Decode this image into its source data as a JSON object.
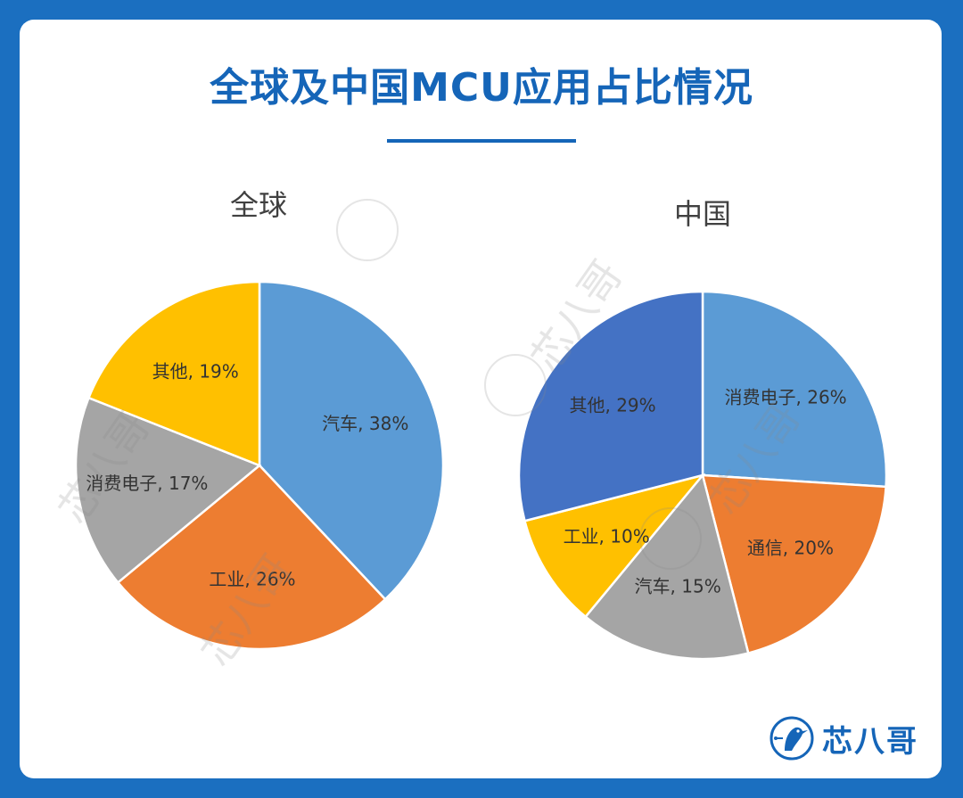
{
  "page": {
    "title": "全球及中国MCU应用占比情况",
    "watermark": "芯八哥",
    "logo_text": "芯八哥"
  },
  "colors": {
    "background": "#1b6fc0",
    "title": "#1565b8"
  },
  "chart_data": [
    {
      "type": "pie",
      "title": "全球",
      "start_angle_deg": 0,
      "direction": "clockwise",
      "slices": [
        {
          "label": "汽车",
          "value": 38,
          "color": "#5b9bd5"
        },
        {
          "label": "工业",
          "value": 26,
          "color": "#ed7d31"
        },
        {
          "label": "消费电子",
          "value": 17,
          "color": "#a5a5a5"
        },
        {
          "label": "其他",
          "value": 19,
          "color": "#ffc000"
        }
      ]
    },
    {
      "type": "pie",
      "title": "中国",
      "start_angle_deg": 0,
      "direction": "clockwise",
      "slices": [
        {
          "label": "消费电子",
          "value": 26,
          "color": "#5b9bd5"
        },
        {
          "label": "通信",
          "value": 20,
          "color": "#ed7d31"
        },
        {
          "label": "汽车",
          "value": 15,
          "color": "#a5a5a5"
        },
        {
          "label": "工业",
          "value": 10,
          "color": "#ffc000"
        },
        {
          "label": "其他",
          "value": 29,
          "color": "#4472c4"
        }
      ]
    }
  ]
}
